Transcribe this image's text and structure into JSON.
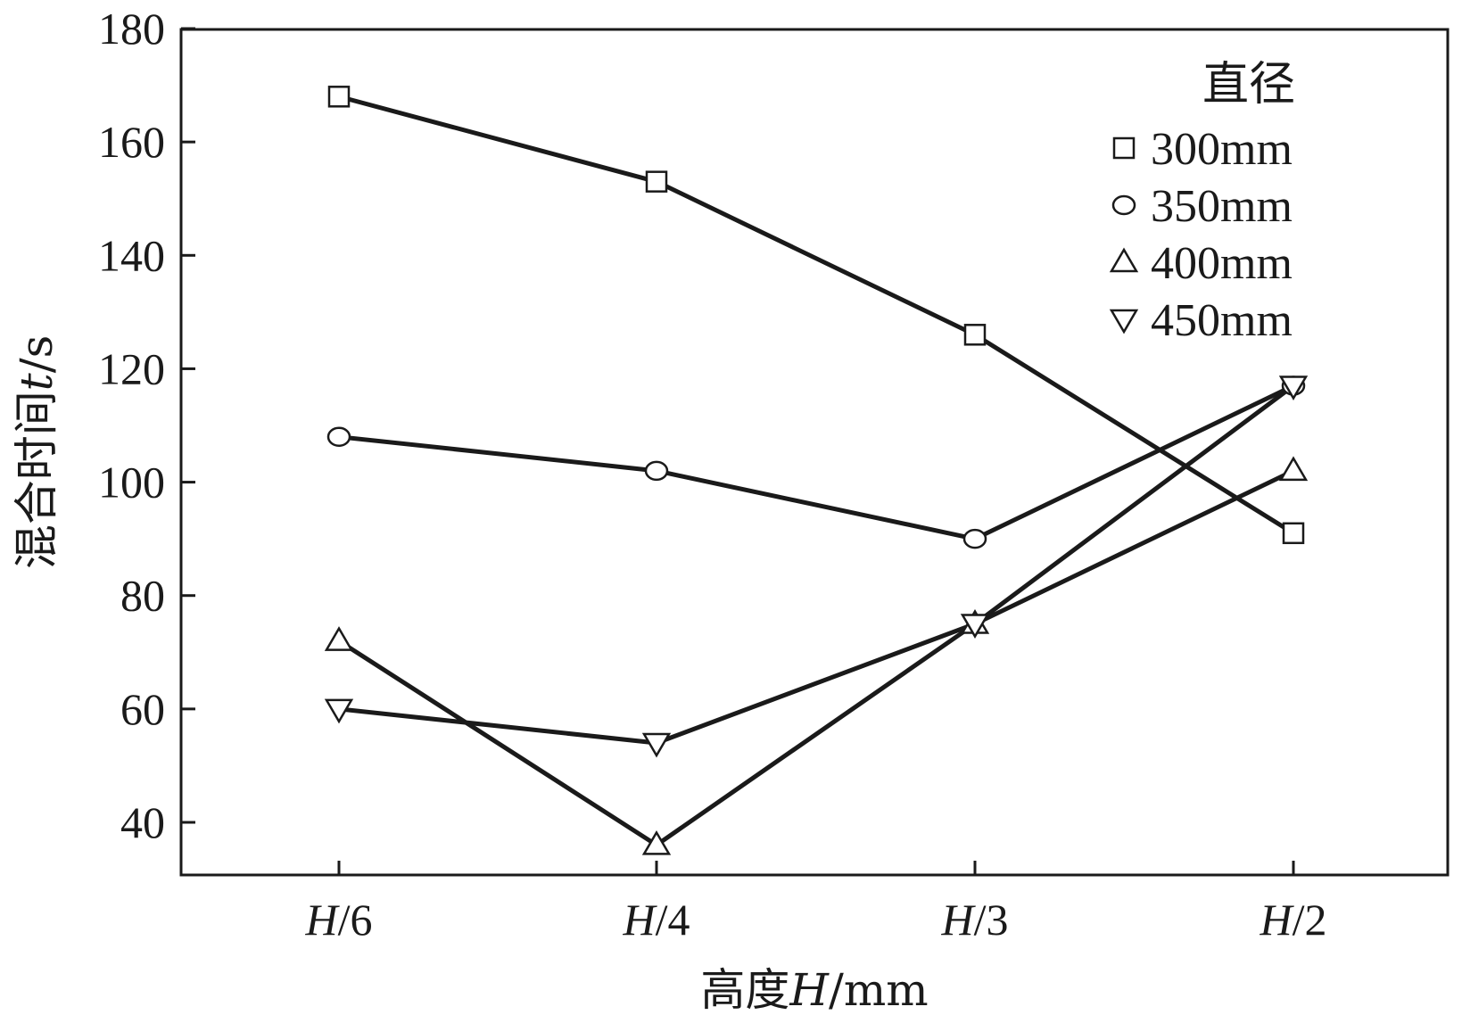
{
  "chart_data": {
    "type": "line",
    "title": "",
    "xlabel": {
      "prefix": "高度",
      "italic": "H",
      "suffix": "/mm"
    },
    "ylabel": {
      "prefix": "混合时间",
      "italic": "t",
      "suffix": "/s"
    },
    "categories": [
      {
        "italic": "H",
        "rest": "/6"
      },
      {
        "italic": "H",
        "rest": "/4"
      },
      {
        "italic": "H",
        "rest": "/3"
      },
      {
        "italic": "H",
        "rest": "/2"
      }
    ],
    "ylim": [
      30,
      180
    ],
    "yticks": [
      40,
      60,
      80,
      100,
      120,
      140,
      160,
      180
    ],
    "grid": false,
    "legend": {
      "title": "直径",
      "placement": "top-right"
    },
    "series": [
      {
        "name": "300mm",
        "marker": "square",
        "values": [
          168,
          153,
          126,
          91
        ]
      },
      {
        "name": "350mm",
        "marker": "circle",
        "values": [
          108,
          102,
          90,
          117
        ]
      },
      {
        "name": "400mm",
        "marker": "triangle-up",
        "values": [
          72,
          36,
          75,
          102
        ]
      },
      {
        "name": "450mm",
        "marker": "triangle-down",
        "values": [
          60,
          54,
          75,
          117
        ]
      }
    ],
    "colors": {
      "line": "#1a1a1a",
      "marker_fill": "#ffffff"
    }
  }
}
